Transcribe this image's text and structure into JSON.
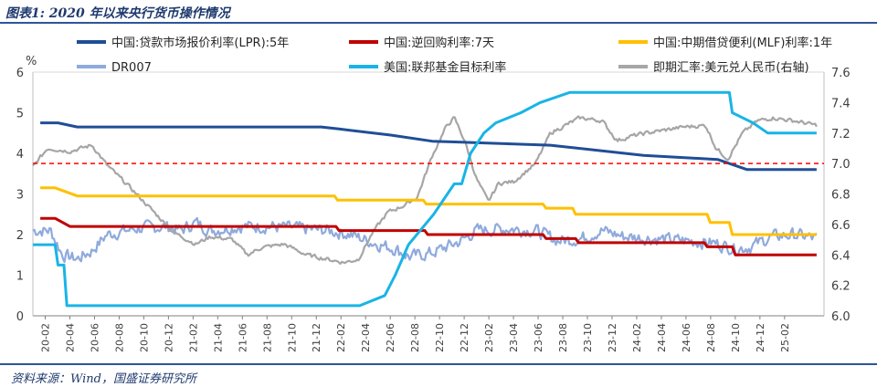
{
  "header": {
    "title": "图表1:  2020 年以来央行货币操作情况"
  },
  "footer": {
    "source": "资料来源：Wind，国盛证券研究所"
  },
  "colors": {
    "lpr": "#1f4e96",
    "reverse_repo": "#c00000",
    "mlf": "#ffc000",
    "dr007": "#8faadc",
    "fed": "#19b4e6",
    "fx": "#a6a6a6",
    "ref": "#ff0000"
  },
  "chart_data": {
    "type": "line",
    "title": "2020 年以来央行货币操作情况",
    "ylabel_left": "%",
    "ylim_left": [
      0,
      6
    ],
    "yticks_left": [
      0,
      1,
      2,
      3,
      4,
      5,
      6
    ],
    "ylim_right": [
      6.0,
      7.6
    ],
    "yticks_right": [
      6.0,
      6.2,
      6.4,
      6.6,
      6.8,
      7.0,
      7.2,
      7.4,
      7.6
    ],
    "xlim": [
      2020.0,
      2025.35
    ],
    "x_tick_labels": [
      "20-02",
      "20-04",
      "20-06",
      "20-08",
      "20-10",
      "20-12",
      "21-02",
      "21-04",
      "21-06",
      "21-08",
      "21-10",
      "21-12",
      "22-02",
      "22-04",
      "22-06",
      "22-08",
      "22-10",
      "22-12",
      "23-02",
      "23-04",
      "23-06",
      "23-08",
      "23-10",
      "23-12",
      "24-02",
      "24-04",
      "24-06",
      "24-08",
      "24-10",
      "24-12",
      "25-02"
    ],
    "reference_line": {
      "axis": "right",
      "value": 7.0,
      "style": "dashed"
    },
    "legend": [
      "中国:贷款市场报价利率(LPR):5年",
      "中国:逆回购利率:7天",
      "中国:中期借贷便利(MLF)利率:1年",
      "DR007",
      "美国:联邦基金目标利率",
      "即期汇率:美元兑人民币(右轴)"
    ],
    "series": [
      {
        "name": "中国:贷款市场报价利率(LPR):5年",
        "axis": "left",
        "color": "#1f4e96",
        "shape": "step",
        "points": [
          [
            2020.05,
            4.75
          ],
          [
            2020.17,
            4.75
          ],
          [
            2020.3,
            4.65
          ],
          [
            2021.95,
            4.65
          ],
          [
            2022.07,
            4.6
          ],
          [
            2022.42,
            4.45
          ],
          [
            2022.7,
            4.3
          ],
          [
            2023.5,
            4.2
          ],
          [
            2024.13,
            3.95
          ],
          [
            2024.63,
            3.85
          ],
          [
            2024.83,
            3.6
          ],
          [
            2025.3,
            3.6
          ]
        ]
      },
      {
        "name": "中国:逆回购利率:7天",
        "axis": "left",
        "color": "#c00000",
        "shape": "step",
        "points": [
          [
            2020.05,
            2.4
          ],
          [
            2020.15,
            2.4
          ],
          [
            2020.25,
            2.2
          ],
          [
            2022.05,
            2.2
          ],
          [
            2022.07,
            2.1
          ],
          [
            2022.65,
            2.1
          ],
          [
            2022.67,
            2.0
          ],
          [
            2023.45,
            2.0
          ],
          [
            2023.47,
            1.9
          ],
          [
            2023.67,
            1.9
          ],
          [
            2023.69,
            1.8
          ],
          [
            2024.54,
            1.8
          ],
          [
            2024.56,
            1.7
          ],
          [
            2024.73,
            1.7
          ],
          [
            2024.75,
            1.5
          ],
          [
            2025.3,
            1.5
          ]
        ]
      },
      {
        "name": "中国:中期借贷便利(MLF)利率:1年",
        "axis": "left",
        "color": "#ffc000",
        "shape": "step",
        "points": [
          [
            2020.05,
            3.15
          ],
          [
            2020.15,
            3.15
          ],
          [
            2020.3,
            2.95
          ],
          [
            2022.04,
            2.95
          ],
          [
            2022.06,
            2.85
          ],
          [
            2022.64,
            2.85
          ],
          [
            2022.66,
            2.75
          ],
          [
            2023.45,
            2.75
          ],
          [
            2023.47,
            2.65
          ],
          [
            2023.65,
            2.65
          ],
          [
            2023.67,
            2.5
          ],
          [
            2024.56,
            2.5
          ],
          [
            2024.58,
            2.3
          ],
          [
            2024.71,
            2.3
          ],
          [
            2024.73,
            2.0
          ],
          [
            2025.3,
            2.0
          ]
        ]
      },
      {
        "name": "美国:联邦基金目标利率",
        "axis": "left",
        "color": "#19b4e6",
        "shape": "step",
        "points": [
          [
            2020.0,
            1.75
          ],
          [
            2020.15,
            1.75
          ],
          [
            2020.17,
            1.25
          ],
          [
            2020.21,
            1.25
          ],
          [
            2020.23,
            0.25
          ],
          [
            2022.21,
            0.25
          ],
          [
            2022.38,
            0.5
          ],
          [
            2022.45,
            1.0
          ],
          [
            2022.54,
            1.75
          ],
          [
            2022.71,
            2.5
          ],
          [
            2022.85,
            3.25
          ],
          [
            2022.9,
            3.25
          ],
          [
            2022.96,
            4.0
          ],
          [
            2023.05,
            4.5
          ],
          [
            2023.13,
            4.75
          ],
          [
            2023.3,
            5.0
          ],
          [
            2023.43,
            5.25
          ],
          [
            2023.63,
            5.5
          ],
          [
            2024.71,
            5.5
          ],
          [
            2024.73,
            5.0
          ],
          [
            2024.87,
            4.75
          ],
          [
            2024.97,
            4.5
          ],
          [
            2025.3,
            4.5
          ]
        ]
      },
      {
        "name": "DR007",
        "axis": "left",
        "color": "#8faadc",
        "shape": "noisy",
        "points": [
          [
            2020.0,
            2.1
          ],
          [
            2020.12,
            2.1
          ],
          [
            2020.2,
            1.5
          ],
          [
            2020.3,
            1.4
          ],
          [
            2020.4,
            1.6
          ],
          [
            2020.5,
            2.0
          ],
          [
            2020.7,
            2.15
          ],
          [
            2020.9,
            2.2
          ],
          [
            2021.0,
            2.1
          ],
          [
            2021.1,
            2.3
          ],
          [
            2021.2,
            2.1
          ],
          [
            2021.4,
            2.2
          ],
          [
            2021.6,
            2.2
          ],
          [
            2021.8,
            2.15
          ],
          [
            2022.0,
            2.1
          ],
          [
            2022.15,
            2.0
          ],
          [
            2022.3,
            1.8
          ],
          [
            2022.45,
            1.65
          ],
          [
            2022.55,
            1.45
          ],
          [
            2022.7,
            1.55
          ],
          [
            2022.9,
            1.85
          ],
          [
            2023.0,
            2.1
          ],
          [
            2023.2,
            2.15
          ],
          [
            2023.4,
            2.1
          ],
          [
            2023.55,
            1.85
          ],
          [
            2023.7,
            1.9
          ],
          [
            2023.85,
            2.1
          ],
          [
            2024.0,
            1.95
          ],
          [
            2024.2,
            1.9
          ],
          [
            2024.4,
            1.85
          ],
          [
            2024.6,
            1.8
          ],
          [
            2024.75,
            1.65
          ],
          [
            2024.85,
            1.7
          ],
          [
            2025.0,
            1.95
          ],
          [
            2025.15,
            2.0
          ],
          [
            2025.3,
            1.9
          ]
        ]
      },
      {
        "name": "即期汇率:美元兑人民币(右轴)",
        "axis": "right",
        "color": "#a6a6a6",
        "shape": "noisy",
        "points": [
          [
            2020.0,
            6.98
          ],
          [
            2020.1,
            7.1
          ],
          [
            2020.25,
            7.08
          ],
          [
            2020.4,
            7.12
          ],
          [
            2020.5,
            6.99
          ],
          [
            2020.65,
            6.85
          ],
          [
            2020.8,
            6.7
          ],
          [
            2020.95,
            6.55
          ],
          [
            2021.1,
            6.47
          ],
          [
            2021.2,
            6.52
          ],
          [
            2021.35,
            6.5
          ],
          [
            2021.45,
            6.4
          ],
          [
            2021.55,
            6.45
          ],
          [
            2021.7,
            6.47
          ],
          [
            2021.85,
            6.4
          ],
          [
            2022.0,
            6.37
          ],
          [
            2022.1,
            6.35
          ],
          [
            2022.2,
            6.37
          ],
          [
            2022.3,
            6.55
          ],
          [
            2022.4,
            6.68
          ],
          [
            2022.5,
            6.72
          ],
          [
            2022.6,
            6.78
          ],
          [
            2022.7,
            7.05
          ],
          [
            2022.8,
            7.25
          ],
          [
            2022.85,
            7.3
          ],
          [
            2022.92,
            7.15
          ],
          [
            2023.0,
            6.9
          ],
          [
            2023.08,
            6.75
          ],
          [
            2023.15,
            6.87
          ],
          [
            2023.25,
            6.88
          ],
          [
            2023.4,
            7.0
          ],
          [
            2023.5,
            7.2
          ],
          [
            2023.6,
            7.25
          ],
          [
            2023.7,
            7.3
          ],
          [
            2023.85,
            7.28
          ],
          [
            2023.95,
            7.15
          ],
          [
            2024.05,
            7.18
          ],
          [
            2024.15,
            7.2
          ],
          [
            2024.4,
            7.24
          ],
          [
            2024.55,
            7.25
          ],
          [
            2024.62,
            7.1
          ],
          [
            2024.7,
            7.03
          ],
          [
            2024.8,
            7.2
          ],
          [
            2024.9,
            7.28
          ],
          [
            2025.0,
            7.3
          ],
          [
            2025.15,
            7.28
          ],
          [
            2025.3,
            7.25
          ]
        ]
      }
    ]
  }
}
